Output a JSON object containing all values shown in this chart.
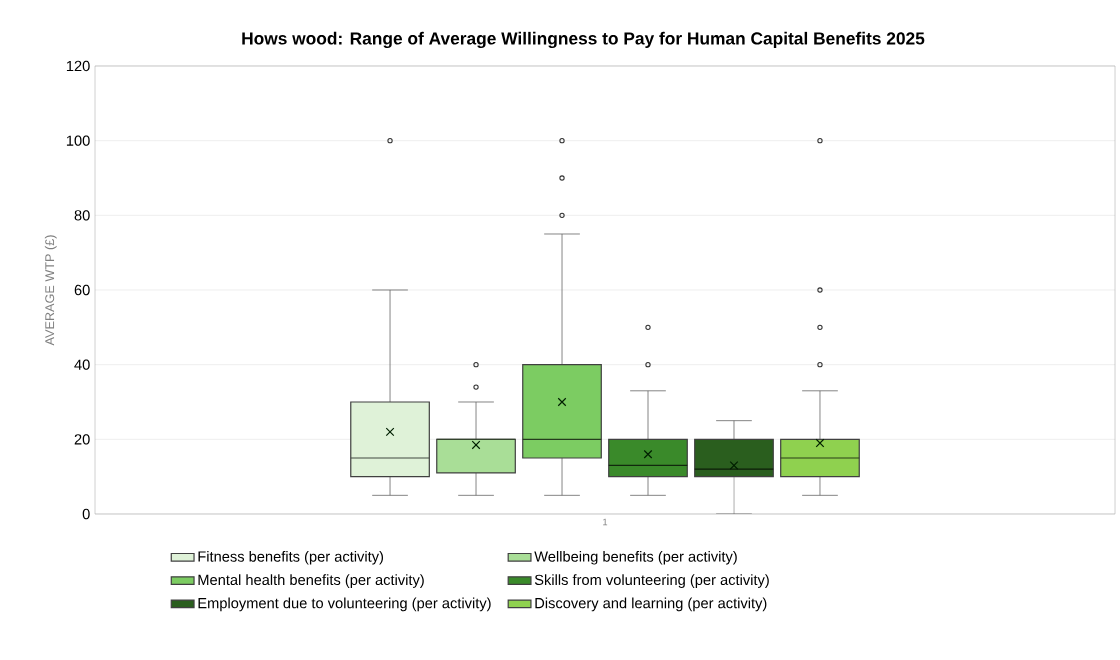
{
  "chart_data": {
    "type": "box",
    "title": "Hows wood: Range of Average Willingness to Pay for Human Capital Benefits 2025",
    "ylabel": "AVERAGE WTP (£)",
    "categories": [
      "1"
    ],
    "series": [
      {
        "name": "Fitness benefits (per activity)",
        "color": "#dff2d8",
        "boxes": [
          {
            "low": 5,
            "q1": 10,
            "median": 15,
            "q3": 30,
            "high": 60,
            "mean": 22,
            "outliers": [
              100
            ]
          }
        ]
      },
      {
        "name": "Wellbeing benefits (per activity)",
        "color": "#a9de97",
        "boxes": [
          {
            "low": 5,
            "q1": 11,
            "median": 20,
            "q3": 20,
            "high": 30,
            "mean": 18.5,
            "outliers": [
              34,
              40
            ]
          }
        ]
      },
      {
        "name": "Mental health benefits (per activity)",
        "color": "#7ccc62",
        "boxes": [
          {
            "low": 5,
            "q1": 15,
            "median": 20,
            "q3": 40,
            "high": 75,
            "mean": 30,
            "outliers": [
              80,
              90,
              100
            ]
          }
        ]
      },
      {
        "name": "Skills from volunteering (per activity)",
        "color": "#3a8a2a",
        "boxes": [
          {
            "low": 5,
            "q1": 10,
            "median": 13,
            "q3": 20,
            "high": 33,
            "mean": 16,
            "outliers": [
              40,
              50
            ]
          }
        ]
      },
      {
        "name": "Employment due to volunteering (per activity)",
        "color": "#2a5e1e",
        "boxes": [
          {
            "low": 0,
            "q1": 10,
            "median": 12,
            "q3": 20,
            "high": 25,
            "mean": 13
          }
        ]
      },
      {
        "name": "Discovery and learning (per activity)",
        "color": "#8fd14f",
        "boxes": [
          {
            "low": 5,
            "q1": 10,
            "median": 15,
            "q3": 20,
            "high": 33,
            "mean": 19,
            "outliers": [
              40,
              50,
              60,
              100
            ]
          }
        ]
      }
    ],
    "ylim": [
      0,
      120
    ],
    "yticks": [
      0,
      20,
      40,
      60,
      80,
      100,
      120
    ],
    "grid": "y",
    "legend": "bottom"
  }
}
